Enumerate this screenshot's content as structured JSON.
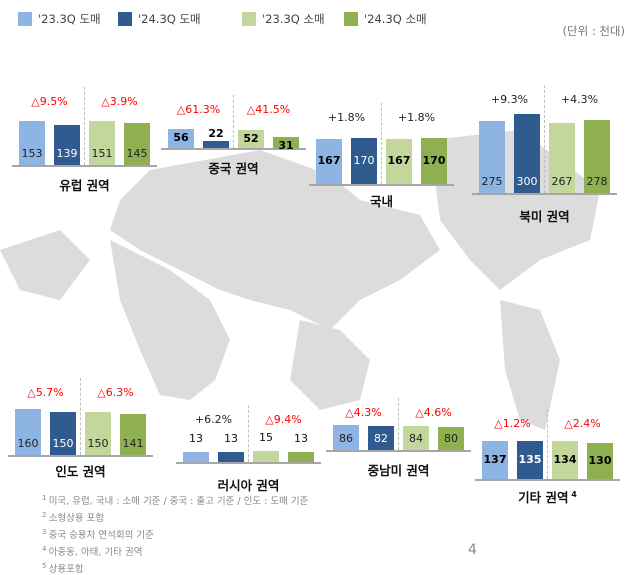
{
  "legend": [
    {
      "label": "'23.3Q 도매",
      "color": "#8eb4e3"
    },
    {
      "label": "'24.3Q 도매",
      "color": "#2f5b8f"
    },
    {
      "label": "'23.3Q 소매",
      "color": "#c3d69b"
    },
    {
      "label": "'24.3Q 소매",
      "color": "#8fb050"
    }
  ],
  "unit": "(단위 : 천대)",
  "colors": {
    "decrease": "#ff0000",
    "increase": "#222222",
    "map": "#d9d9d9"
  },
  "chart_data": [
    {
      "type": "bar",
      "title": "유럽 권역",
      "categories": [
        "'23.3Q 도매",
        "'24.3Q 도매",
        "'23.3Q 소매",
        "'24.3Q 소매"
      ],
      "values": [
        153,
        139,
        151,
        145
      ],
      "changes": [
        "△9.5%",
        "△3.9%"
      ]
    },
    {
      "type": "bar",
      "title": "중국 권역",
      "categories": [
        "'23.3Q 도매",
        "'24.3Q 도매",
        "'23.3Q 소매",
        "'24.3Q 소매"
      ],
      "values": [
        56,
        22,
        52,
        31
      ],
      "changes": [
        "△61.3%",
        "△41.5%"
      ]
    },
    {
      "type": "bar",
      "title": "국내",
      "categories": [
        "'23.3Q 도매",
        "'24.3Q 도매",
        "'23.3Q 소매",
        "'24.3Q 소매"
      ],
      "values": [
        167,
        170,
        167,
        170
      ],
      "changes": [
        "+1.8%",
        "+1.8%"
      ]
    },
    {
      "type": "bar",
      "title": "북미 권역",
      "categories": [
        "'23.3Q 도매",
        "'24.3Q 도매",
        "'23.3Q 소매",
        "'24.3Q 소매"
      ],
      "values": [
        275,
        300,
        267,
        278
      ],
      "changes": [
        "+9.3%",
        "+4.3%"
      ]
    },
    {
      "type": "bar",
      "title": "인도 권역",
      "categories": [
        "'23.3Q 도매",
        "'24.3Q 도매",
        "'23.3Q 소매",
        "'24.3Q 소매"
      ],
      "values": [
        160,
        150,
        150,
        141
      ],
      "changes": [
        "△5.7%",
        "△6.3%"
      ]
    },
    {
      "type": "bar",
      "title": "러시아 권역",
      "categories": [
        "'23.3Q 도매",
        "'24.3Q 도매",
        "'23.3Q 소매",
        "'24.3Q 소매"
      ],
      "values": [
        13,
        13,
        15,
        13
      ],
      "changes": [
        "+6.2%",
        "△9.4%"
      ]
    },
    {
      "type": "bar",
      "title": "중남미 권역",
      "categories": [
        "'23.3Q 도매",
        "'24.3Q 도매",
        "'23.3Q 소매",
        "'24.3Q 소매"
      ],
      "values": [
        86,
        82,
        84,
        80
      ],
      "changes": [
        "△4.3%",
        "△4.6%"
      ]
    },
    {
      "type": "bar",
      "title": "기타 권역",
      "title_note": "4",
      "categories": [
        "'23.3Q 도매",
        "'24.3Q 도매",
        "'23.3Q 소매",
        "'24.3Q 소매"
      ],
      "values": [
        137,
        135,
        134,
        130
      ],
      "changes": [
        "△1.2%",
        "△2.4%"
      ]
    }
  ],
  "footnotes": [
    {
      "num": "1",
      "text": "미국, 유럽, 국내 : 소매 기준 / 중국 : 출고 기준 / 인도 : 도매 기준"
    },
    {
      "num": "2",
      "text": "소형상용 포함"
    },
    {
      "num": "3",
      "text": "중국 승용차 연석회의 기준"
    },
    {
      "num": "4",
      "text": "아중동, 아태, 기타 권역"
    },
    {
      "num": "5",
      "text": "상용포함"
    }
  ],
  "page_number": "4"
}
